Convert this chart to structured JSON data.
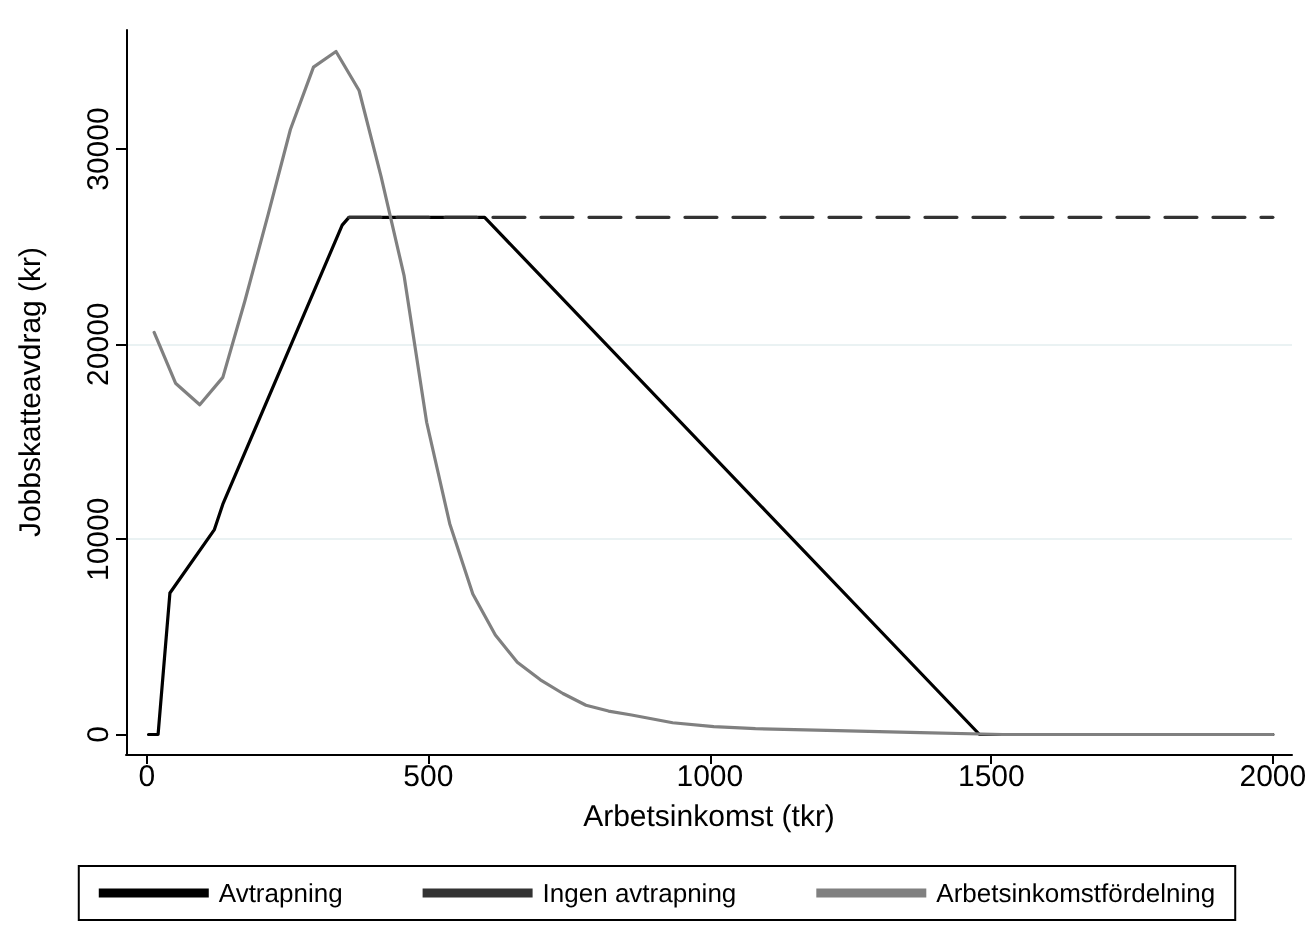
{
  "chart_data": {
    "type": "line",
    "xlabel": "Arbetsinkomst (tkr)",
    "ylabel": "Jobbskatteavdrag (kr)",
    "xlim": [
      -37,
      2034
    ],
    "xticks": [
      0,
      500,
      1000,
      1500,
      2000
    ],
    "ylim": [
      -1000,
      36100
    ],
    "yticks": [
      0,
      10000,
      20000,
      30000
    ],
    "grid": "y",
    "legend": "bottom",
    "marker": "none",
    "series": [
      {
        "name": "Avtrapning",
        "color": "#000000",
        "line_style": "solid",
        "x": [
          3,
          20,
          41,
          120,
          135,
          347,
          359,
          600,
          1479,
          2000
        ],
        "values": [
          0,
          0,
          7250,
          10500,
          11800,
          26100,
          26500,
          26500,
          0,
          0
        ]
      },
      {
        "name": "Ingen avtrapning",
        "color": "#333333",
        "line_style": "dashed",
        "x": [
          359,
          2000
        ],
        "values": [
          26500,
          26500
        ]
      },
      {
        "name": "Arbetsinkomstfördelning",
        "color": "#808080",
        "line_style": "solid",
        "x": [
          13,
          51,
          94,
          135,
          174,
          216,
          255,
          296,
          336,
          377,
          416,
          457,
          497,
          538,
          579,
          619,
          658,
          699,
          739,
          780,
          820,
          861,
          934,
          1007,
          1081,
          1227,
          1374,
          1520,
          2000
        ],
        "values": [
          20600,
          18000,
          16900,
          18300,
          22200,
          26700,
          31000,
          34200,
          35000,
          33000,
          28600,
          23500,
          16000,
          10800,
          7200,
          5100,
          3700,
          2800,
          2100,
          1500,
          1200,
          1000,
          600,
          400,
          300,
          200,
          100,
          0,
          0
        ]
      }
    ]
  }
}
